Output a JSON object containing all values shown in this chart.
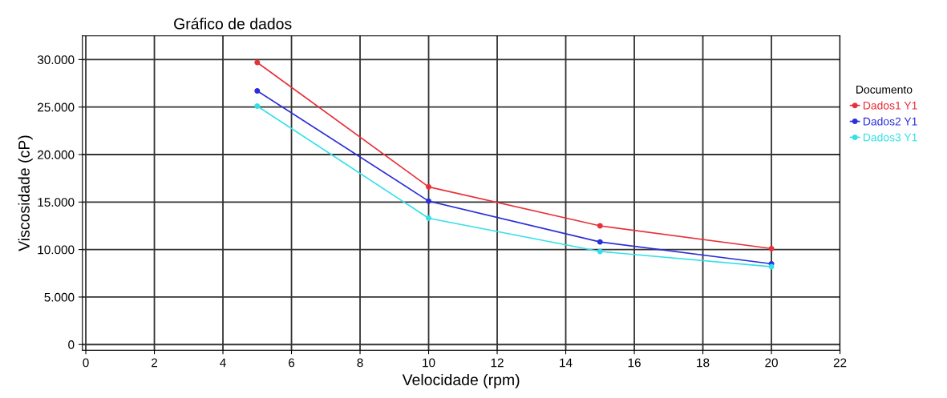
{
  "chart_data": {
    "type": "line",
    "title": "Gráfico de dados",
    "xlabel": "Velocidade (rpm)",
    "ylabel": "Viscosidade (cP)",
    "legend_title": "Documento",
    "x": [
      5,
      10,
      15,
      20
    ],
    "series": [
      {
        "name": "Dados1 Y1",
        "color": "#e8303a",
        "values": [
          29700,
          16600,
          12500,
          10100
        ]
      },
      {
        "name": "Dados2 Y1",
        "color": "#2b2fd9",
        "values": [
          26700,
          15100,
          10800,
          8500
        ]
      },
      {
        "name": "Dados3 Y1",
        "color": "#33e0e8",
        "values": [
          25100,
          13300,
          9800,
          8200
        ]
      }
    ],
    "xlim": [
      -0.1,
      22
    ],
    "xticks": [
      0,
      2,
      4,
      6,
      8,
      10,
      12,
      14,
      16,
      18,
      20,
      22
    ],
    "ylim": [
      -600,
      32500
    ],
    "yticks": [
      {
        "value": 0,
        "label": "0"
      },
      {
        "value": 5000,
        "label": "5.000"
      },
      {
        "value": 10000,
        "label": "10.000"
      },
      {
        "value": 15000,
        "label": "15.000"
      },
      {
        "value": 20000,
        "label": "20.000"
      },
      {
        "value": 25000,
        "label": "25.000"
      },
      {
        "value": 30000,
        "label": "30.000"
      }
    ],
    "grid": true,
    "legend": "right",
    "marker": "circle",
    "line_style": "solid"
  }
}
